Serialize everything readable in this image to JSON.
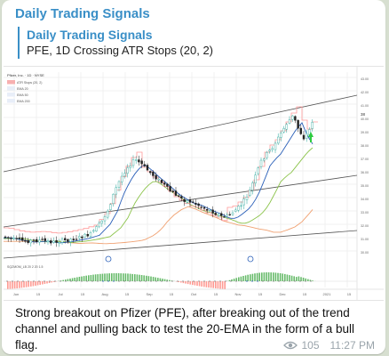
{
  "message": {
    "sender": "Daily Trading Signals",
    "reply": {
      "title": "Daily Trading Signals",
      "text": "PFE, 1D Crossing ATR Stops (20, 2)"
    },
    "caption": "Strong breakout on Pfizer (PFE), after breaking out of the trend channel and pulling back to test the 20-EMA in the form of a bull flag.",
    "views": "105",
    "time": "11:27 PM",
    "icons": {
      "views": "eye-icon"
    }
  },
  "chart": {
    "header": "Pfizer, Inc. · 1D · NYSE",
    "legend": [
      "ATR Stops (20, 2)",
      "EMA 20",
      "EMA 50",
      "EMA 200"
    ],
    "oscillator_label": "SQZMOM_LB 20 2 20 1.5",
    "x_ticks": [
      "Jun",
      "15",
      "Jul",
      "15",
      "Aug",
      "15",
      "Sep",
      "15",
      "Oct",
      "15",
      "Nov",
      "15",
      "Dec",
      "15",
      "2021",
      "15"
    ],
    "y_ticks": [
      "43.00",
      "42.00",
      "41.00",
      "40.00",
      "39.00",
      "38.00",
      "37.00",
      "36.00",
      "35.00",
      "34.00",
      "33.00",
      "32.00",
      "31.00",
      "30.00"
    ],
    "last_price_label": "38",
    "colors": {
      "up": "#26a69a",
      "down": "#222222",
      "ema_fast": "#2a5fb8",
      "ema_mid": "#8bc34a",
      "ema_slow": "#f0a070",
      "channel": "#555555",
      "atr_stop": "#ff9a9a",
      "osc_pos": "#4caf50",
      "osc_neg": "#ff8a80"
    }
  }
}
